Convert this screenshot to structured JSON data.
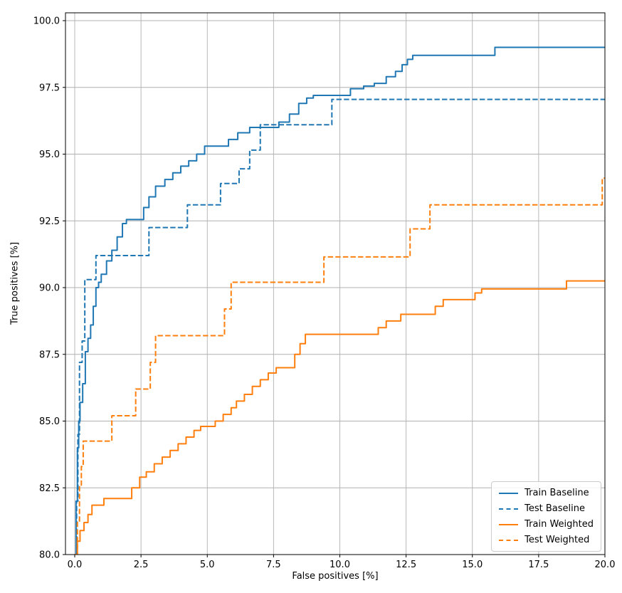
{
  "chart_data": {
    "type": "line",
    "step": "post",
    "title": "",
    "xlabel": "False positives [%]",
    "ylabel": "True positives [%]",
    "xlim": [
      0,
      20
    ],
    "ylim": [
      80,
      100
    ],
    "xticks": [
      "0.0",
      "2.5",
      "5.0",
      "7.5",
      "10.0",
      "12.5",
      "15.0",
      "17.5",
      "20.0"
    ],
    "yticks": [
      "80.0",
      "82.5",
      "85.0",
      "87.5",
      "90.0",
      "92.5",
      "95.0",
      "97.5",
      "100.0"
    ],
    "grid": true,
    "grid_color": "#b0b0b0",
    "legend_position": "lower right",
    "series": [
      {
        "name": "Train Baseline",
        "color": "#1f77b4",
        "style": "solid",
        "x": [
          0.0,
          0.05,
          0.1,
          0.15,
          0.2,
          0.3,
          0.4,
          0.5,
          0.6,
          0.7,
          0.8,
          0.9,
          1.0,
          1.2,
          1.4,
          1.6,
          1.8,
          1.95,
          2.6,
          2.8,
          3.05,
          3.4,
          3.7,
          4.0,
          4.3,
          4.6,
          4.9,
          5.8,
          6.15,
          6.6,
          7.7,
          8.1,
          8.45,
          8.75,
          9.0,
          10.4,
          10.9,
          11.3,
          11.75,
          12.1,
          12.35,
          12.55,
          12.75,
          15.85,
          20.0
        ],
        "y": [
          80.0,
          82.0,
          84.0,
          85.0,
          85.7,
          86.4,
          87.6,
          88.1,
          88.6,
          89.3,
          90.0,
          90.2,
          90.5,
          91.0,
          91.4,
          91.9,
          92.4,
          92.55,
          93.0,
          93.4,
          93.8,
          94.05,
          94.3,
          94.55,
          94.75,
          95.0,
          95.3,
          95.55,
          95.8,
          96.0,
          96.2,
          96.5,
          96.9,
          97.1,
          97.2,
          97.45,
          97.55,
          97.65,
          97.9,
          98.1,
          98.35,
          98.55,
          98.7,
          99.0,
          99.0
        ]
      },
      {
        "name": "Test Baseline",
        "color": "#1f77b4",
        "style": "dashed",
        "x": [
          0.0,
          0.07,
          0.12,
          0.18,
          0.28,
          0.38,
          0.8,
          2.8,
          4.25,
          5.5,
          6.2,
          6.6,
          7.0,
          9.7,
          20.0
        ],
        "y": [
          80.0,
          82.0,
          84.5,
          87.2,
          88.0,
          90.3,
          91.2,
          92.25,
          93.1,
          93.9,
          94.45,
          95.15,
          96.1,
          97.05,
          97.05
        ]
      },
      {
        "name": "Train Weighted",
        "color": "#ff7f0e",
        "style": "solid",
        "x": [
          0.0,
          0.1,
          0.2,
          0.35,
          0.5,
          0.65,
          1.1,
          2.15,
          2.45,
          2.7,
          3.0,
          3.3,
          3.6,
          3.9,
          4.2,
          4.5,
          4.75,
          5.3,
          5.6,
          5.9,
          6.1,
          6.4,
          6.7,
          7.0,
          7.3,
          7.6,
          8.3,
          8.5,
          8.7,
          11.45,
          11.75,
          12.3,
          13.6,
          13.9,
          15.1,
          15.35,
          18.55,
          20.0
        ],
        "y": [
          80.0,
          80.5,
          80.9,
          81.2,
          81.5,
          81.85,
          82.1,
          82.5,
          82.9,
          83.1,
          83.4,
          83.65,
          83.9,
          84.15,
          84.4,
          84.65,
          84.8,
          85.0,
          85.25,
          85.5,
          85.75,
          86.0,
          86.3,
          86.55,
          86.8,
          87.0,
          87.5,
          87.9,
          88.25,
          88.5,
          88.75,
          89.0,
          89.3,
          89.55,
          89.8,
          89.95,
          90.25,
          90.25
        ]
      },
      {
        "name": "Test Weighted",
        "color": "#ff7f0e",
        "style": "dashed",
        "x": [
          0.0,
          0.1,
          0.18,
          0.25,
          0.32,
          1.4,
          2.3,
          2.85,
          3.05,
          5.65,
          5.9,
          9.4,
          12.65,
          13.4,
          19.9,
          20.0
        ],
        "y": [
          80.0,
          81.2,
          82.6,
          83.3,
          84.25,
          85.2,
          86.2,
          87.2,
          88.2,
          89.2,
          90.2,
          91.15,
          92.2,
          93.1,
          94.1,
          94.1
        ]
      }
    ]
  }
}
